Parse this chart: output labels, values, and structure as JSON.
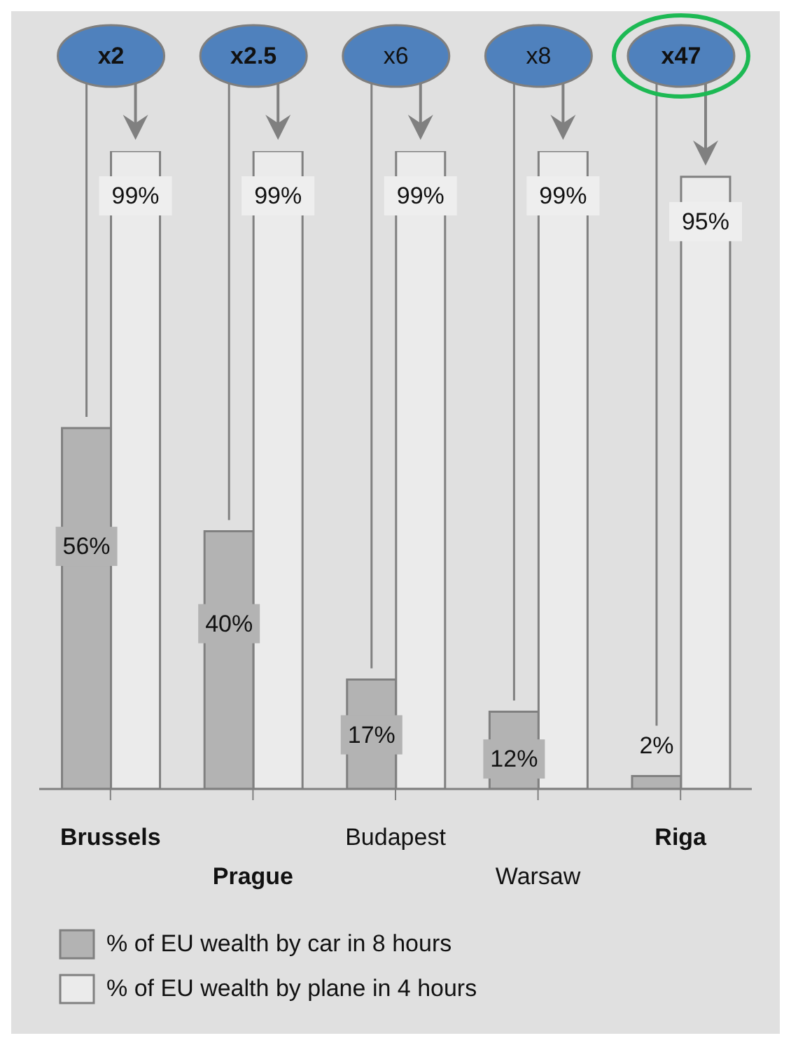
{
  "chart_data": {
    "type": "bar",
    "categories": [
      "Brussels",
      "Prague",
      "Budapest",
      "Warsaw",
      "Riga"
    ],
    "series": [
      {
        "name": "% of EU wealth by car in 8 hours",
        "color": "#b3b3b3",
        "values": [
          56,
          40,
          17,
          12,
          2
        ],
        "value_labels": [
          "56%",
          "40%",
          "17%",
          "12%",
          "2%"
        ]
      },
      {
        "name": "% of EU wealth by plane in 4 hours",
        "color": "#ebebeb",
        "values": [
          99,
          99,
          99,
          99,
          95
        ],
        "value_labels": [
          "99%",
          "99%",
          "99%",
          "99%",
          "95%"
        ]
      }
    ],
    "annotations": [
      "x2",
      "x2.5",
      "x6",
      "x8",
      "x47"
    ],
    "legend": "bottom"
  }
}
